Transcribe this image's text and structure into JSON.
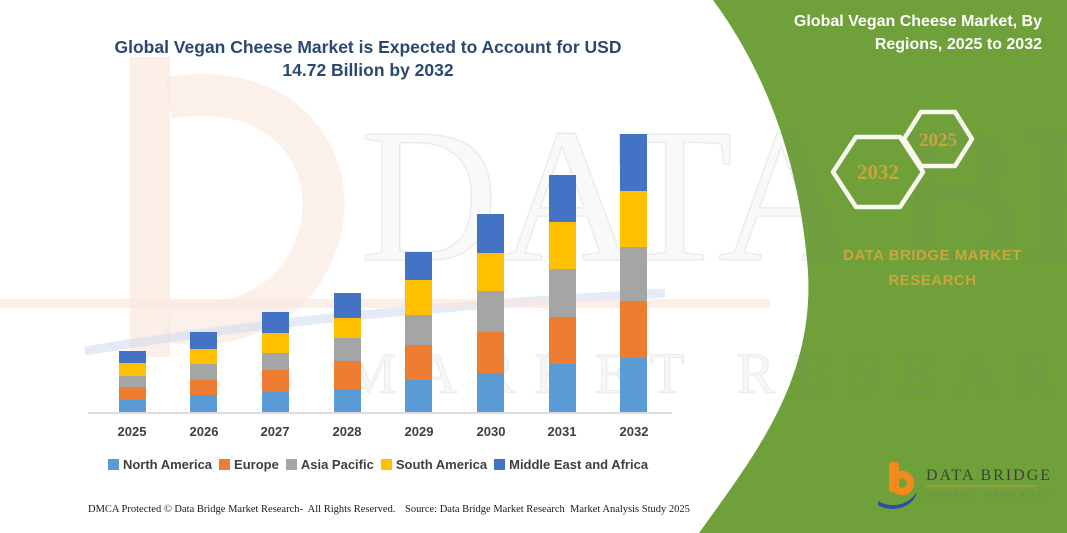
{
  "left_title": {
    "line1": "Global Vegan Cheese Market is Expected to Account for USD",
    "line2": "14.72 Billion by 2032"
  },
  "right_panel": {
    "title_line1": "Global Vegan Cheese Market, By",
    "title_line2": "Regions, 2025 to 2032",
    "hexagon_back_label": "2032",
    "hexagon_front_label": "2025",
    "brand_line1": "DATA BRIDGE MARKET",
    "brand_line2": "RESEARCH"
  },
  "watermark": {
    "row1": "DATA BRIDGE",
    "row2": "MARKET RESEARCH"
  },
  "logo": {
    "name": "DATA BRIDGE",
    "tagline": "MARKET RESEARCH"
  },
  "footer": {
    "left": "DMCA Protected © Data Bridge Market Research-  All Rights Reserved.",
    "right": "Source: Data Bridge Market Research  Market Analysis Study 2025"
  },
  "chart_data": {
    "type": "bar",
    "stacked": true,
    "title": "Global Vegan Cheese Market is Expected to Account for USD 14.72 Billion by 2032",
    "unit": "USD Billion",
    "categories": [
      "2025",
      "2026",
      "2027",
      "2028",
      "2029",
      "2030",
      "2031",
      "2032"
    ],
    "series": [
      {
        "name": "North America",
        "color": "#5B9BD5",
        "values": [
          0.66,
          0.88,
          1.06,
          1.22,
          1.7,
          2.06,
          2.54,
          2.86
        ]
      },
      {
        "name": "Europe",
        "color": "#ED7D31",
        "values": [
          0.64,
          0.8,
          1.14,
          1.48,
          1.85,
          2.17,
          2.49,
          3.02
        ]
      },
      {
        "name": "Asia Pacific",
        "color": "#A5A5A5",
        "values": [
          0.62,
          0.88,
          0.9,
          1.22,
          1.59,
          2.17,
          2.54,
          2.86
        ]
      },
      {
        "name": "South America",
        "color": "#FFC000",
        "values": [
          0.66,
          0.79,
          1.06,
          1.06,
          1.85,
          2.01,
          2.49,
          2.96
        ]
      },
      {
        "name": "Middle East and Africa",
        "color": "#4472C4",
        "values": [
          0.65,
          0.89,
          1.14,
          1.32,
          1.48,
          2.07,
          2.49,
          3.02
        ]
      }
    ],
    "totals": [
      3.23,
      4.24,
      5.3,
      6.3,
      8.47,
      10.48,
      12.55,
      14.72
    ],
    "final_year_total": 14.72,
    "xlabel": "",
    "ylabel": "",
    "y_axis_visible": false,
    "gridlines": false,
    "legend_position": "bottom"
  },
  "colors": {
    "panel_green": "#6FA03A",
    "accent_gold": "#C9A63C",
    "title_navy": "#2A4870",
    "axis_text": "#3F3F3F"
  }
}
